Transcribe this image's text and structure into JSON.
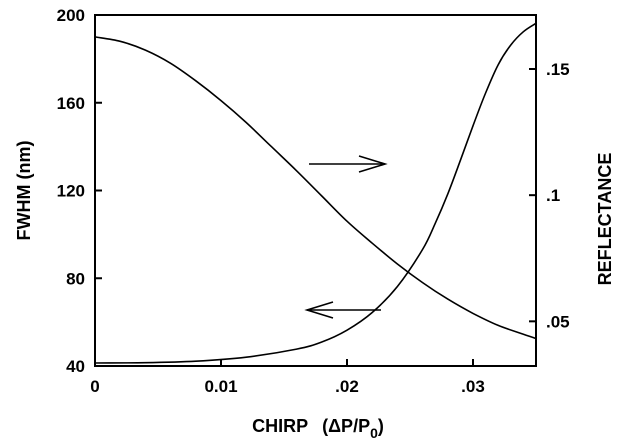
{
  "chart_data": {
    "type": "line",
    "title": "",
    "xlabel": {
      "main": "CHIRP",
      "open": "(ΔP/P",
      "sub": "0",
      "close": ")"
    },
    "ylabel_left": "FWHM  (nm)",
    "ylabel_right": "REFLECTANCE",
    "xlim": [
      0,
      0.035
    ],
    "ylim_left": [
      40,
      200
    ],
    "ylim_right": [
      0.0323,
      0.1714
    ],
    "x_ticks": [
      {
        "value": 0,
        "label": "0"
      },
      {
        "value": 0.01,
        "label": "0.01"
      },
      {
        "value": 0.02,
        "label": ".02"
      },
      {
        "value": 0.03,
        "label": ".03"
      }
    ],
    "y_left_ticks": [
      {
        "value": 40,
        "label": "40"
      },
      {
        "value": 80,
        "label": "80"
      },
      {
        "value": 120,
        "label": "120"
      },
      {
        "value": 160,
        "label": "160"
      },
      {
        "value": 200,
        "label": "200"
      }
    ],
    "y_right_ticks": [
      {
        "value": 0.05,
        "label": ".05"
      },
      {
        "value": 0.1,
        "label": ".1"
      },
      {
        "value": 0.15,
        "label": ".15"
      }
    ],
    "series": [
      {
        "axis": "right",
        "x": [
          0,
          0.004,
          0.008,
          0.012,
          0.016,
          0.018,
          0.02,
          0.022,
          0.024,
          0.026,
          0.027,
          0.028,
          0.029,
          0.03,
          0.031,
          0.032,
          0.033,
          0.034,
          0.035
        ],
        "values": [
          0.0335,
          0.0336,
          0.0342,
          0.0358,
          0.039,
          0.0418,
          0.0465,
          0.0535,
          0.0638,
          0.0785,
          0.0888,
          0.1005,
          0.1138,
          0.1275,
          0.1405,
          0.1517,
          0.1595,
          0.1648,
          0.1681
        ]
      },
      {
        "axis": "left",
        "x": [
          0,
          0.002,
          0.004,
          0.006,
          0.008,
          0.01,
          0.012,
          0.014,
          0.016,
          0.018,
          0.02,
          0.022,
          0.024,
          0.026,
          0.028,
          0.03,
          0.032,
          0.034,
          0.035
        ],
        "values": [
          190,
          188,
          184,
          178,
          170,
          161,
          151,
          140,
          129,
          117.5,
          106,
          96,
          86.5,
          78,
          70.5,
          64,
          58.5,
          54.5,
          52.5
        ]
      }
    ],
    "annotations": [
      {
        "type": "arrow",
        "direction": "right",
        "points_to": "right-axis"
      },
      {
        "type": "arrow",
        "direction": "left",
        "points_to": "left-axis"
      }
    ],
    "grid": false,
    "legend": "none"
  }
}
